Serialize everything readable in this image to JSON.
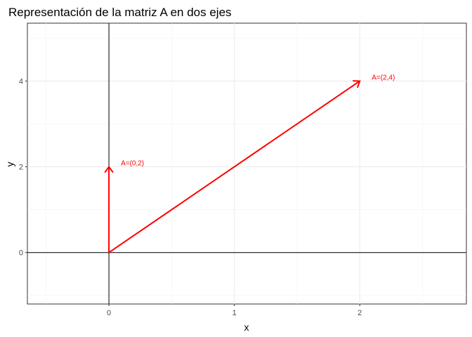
{
  "chart_data": {
    "type": "vector",
    "title": "Representación de la matriz A en dos ejes",
    "xlabel": "x",
    "ylabel": "y",
    "xlim": [
      -0.65,
      2.85
    ],
    "ylim": [
      -1.2,
      5.35
    ],
    "x_ticks": [
      0,
      1,
      2
    ],
    "y_ticks": [
      0,
      2,
      4
    ],
    "x_tick_labels": [
      "0",
      "1",
      "2"
    ],
    "y_tick_labels": [
      "0",
      "2",
      "4"
    ],
    "x_minor": [
      -0.5,
      0.5,
      1.5,
      2.5
    ],
    "y_minor": [
      -1,
      1,
      3,
      5
    ],
    "grid": true,
    "reference_lines": {
      "x": 0,
      "y": 0
    },
    "vectors": [
      {
        "from": [
          0,
          0
        ],
        "to": [
          0,
          2
        ],
        "label": "A=(0,2)"
      },
      {
        "from": [
          0,
          0
        ],
        "to": [
          2,
          4
        ],
        "label": "A=(2,4)"
      }
    ],
    "vector_color": "#ff0000"
  }
}
